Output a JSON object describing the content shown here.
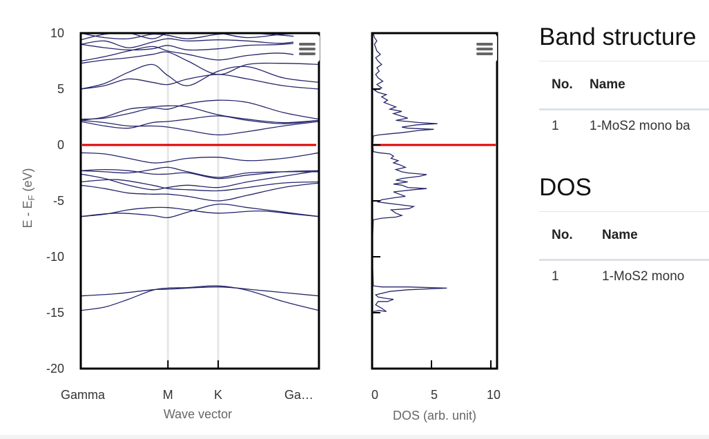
{
  "chart_data": [
    {
      "type": "line",
      "name": "Band structure plot",
      "xlabel": "Wave vector",
      "ylabel_main": "E - E",
      "ylabel_sub": "F",
      "ylabel_tail": " (eV)",
      "ylim": [
        -20,
        10
      ],
      "yticks": [
        10,
        5,
        0,
        -5,
        -10,
        -15,
        -20
      ],
      "xlim": [
        0,
        1
      ],
      "kpoints": [
        {
          "label": "Gamma",
          "x": 0.0
        },
        {
          "label": "M",
          "x": 0.366
        },
        {
          "label": "K",
          "x": 0.577
        },
        {
          "label": "Ga…",
          "x": 1.0
        }
      ],
      "fermi_level": 0,
      "bands": [
        [
          [
            0,
            -14.8
          ],
          [
            0.1,
            -14.5
          ],
          [
            0.2,
            -13.8
          ],
          [
            0.3,
            -13.0
          ],
          [
            0.366,
            -12.8
          ],
          [
            0.45,
            -12.75
          ],
          [
            0.577,
            -12.6
          ],
          [
            0.7,
            -13.0
          ],
          [
            0.85,
            -14.0
          ],
          [
            1,
            -14.8
          ]
        ],
        [
          [
            0,
            -13.5
          ],
          [
            0.15,
            -13.3
          ],
          [
            0.3,
            -12.95
          ],
          [
            0.366,
            -12.9
          ],
          [
            0.577,
            -12.7
          ],
          [
            0.75,
            -13.0
          ],
          [
            1,
            -13.5
          ]
        ],
        [
          [
            0,
            -6.4
          ],
          [
            0.1,
            -6.2
          ],
          [
            0.2,
            -5.8
          ],
          [
            0.3,
            -5.6
          ],
          [
            0.366,
            -5.6
          ],
          [
            0.45,
            -5.8
          ],
          [
            0.577,
            -6.1
          ],
          [
            0.75,
            -5.9
          ],
          [
            0.9,
            -6.2
          ],
          [
            1,
            -6.4
          ]
        ],
        [
          [
            0,
            -6.4
          ],
          [
            0.15,
            -6.1
          ],
          [
            0.3,
            -6.3
          ],
          [
            0.366,
            -6.5
          ],
          [
            0.45,
            -6.0
          ],
          [
            0.577,
            -5.3
          ],
          [
            0.7,
            -5.6
          ],
          [
            0.85,
            -6.0
          ],
          [
            1,
            -6.4
          ]
        ],
        [
          [
            0,
            -3.6
          ],
          [
            0.1,
            -3.9
          ],
          [
            0.2,
            -4.3
          ],
          [
            0.3,
            -4.4
          ],
          [
            0.366,
            -4.4
          ],
          [
            0.45,
            -4.6
          ],
          [
            0.577,
            -5.0
          ],
          [
            0.7,
            -4.5
          ],
          [
            0.85,
            -3.8
          ],
          [
            1,
            -3.4
          ]
        ],
        [
          [
            0,
            -3.3
          ],
          [
            0.15,
            -3.1
          ],
          [
            0.3,
            -3.6
          ],
          [
            0.366,
            -3.9
          ],
          [
            0.45,
            -4.0
          ],
          [
            0.577,
            -4.1
          ],
          [
            0.7,
            -3.8
          ],
          [
            0.85,
            -3.4
          ],
          [
            1,
            -3.3
          ]
        ],
        [
          [
            0,
            -2.6
          ],
          [
            0.1,
            -3.0
          ],
          [
            0.2,
            -3.6
          ],
          [
            0.3,
            -4.0
          ],
          [
            0.366,
            -3.8
          ],
          [
            0.45,
            -3.6
          ],
          [
            0.577,
            -3.8
          ],
          [
            0.7,
            -3.3
          ],
          [
            0.85,
            -2.8
          ],
          [
            1,
            -2.3
          ]
        ],
        [
          [
            0,
            -2.3
          ],
          [
            0.1,
            -2.2
          ],
          [
            0.2,
            -2.3
          ],
          [
            0.3,
            -2.6
          ],
          [
            0.366,
            -2.6
          ],
          [
            0.45,
            -2.5
          ],
          [
            0.577,
            -3.0
          ],
          [
            0.7,
            -2.7
          ],
          [
            0.85,
            -2.4
          ],
          [
            1,
            -2.3
          ]
        ],
        [
          [
            0,
            -2.3
          ],
          [
            0.1,
            -2.4
          ],
          [
            0.2,
            -2.5
          ],
          [
            0.3,
            -2.2
          ],
          [
            0.366,
            -2.0
          ],
          [
            0.45,
            -2.4
          ],
          [
            0.577,
            -2.9
          ],
          [
            0.7,
            -2.5
          ],
          [
            0.85,
            -2.4
          ],
          [
            1,
            -2.4
          ]
        ],
        [
          [
            0,
            -0.7
          ],
          [
            0.1,
            -0.8
          ],
          [
            0.2,
            -1.2
          ],
          [
            0.3,
            -1.6
          ],
          [
            0.366,
            -1.5
          ],
          [
            0.45,
            -1.2
          ],
          [
            0.577,
            -1.1
          ],
          [
            0.7,
            -1.4
          ],
          [
            0.85,
            -1.2
          ],
          [
            1,
            -0.7
          ]
        ],
        [
          [
            0,
            2.2
          ],
          [
            0.1,
            2.0
          ],
          [
            0.2,
            1.7
          ],
          [
            0.3,
            1.7
          ],
          [
            0.366,
            1.6
          ],
          [
            0.45,
            1.3
          ],
          [
            0.577,
            0.9
          ],
          [
            0.7,
            1.2
          ],
          [
            0.85,
            1.7
          ],
          [
            1,
            2.1
          ]
        ],
        [
          [
            0,
            2.1
          ],
          [
            0.1,
            1.7
          ],
          [
            0.2,
            1.5
          ],
          [
            0.3,
            2.0
          ],
          [
            0.366,
            2.1
          ],
          [
            0.45,
            2.3
          ],
          [
            0.577,
            2.6
          ],
          [
            0.7,
            2.2
          ],
          [
            0.85,
            1.9
          ],
          [
            1,
            2.2
          ]
        ],
        [
          [
            0,
            2.2
          ],
          [
            0.1,
            2.5
          ],
          [
            0.2,
            3.2
          ],
          [
            0.3,
            3.4
          ],
          [
            0.366,
            3.5
          ],
          [
            0.45,
            3.4
          ],
          [
            0.577,
            2.7
          ],
          [
            0.7,
            2.3
          ],
          [
            0.85,
            2.0
          ],
          [
            1,
            2.2
          ]
        ],
        [
          [
            0,
            2.3
          ],
          [
            0.1,
            2.4
          ],
          [
            0.2,
            2.8
          ],
          [
            0.3,
            3.3
          ],
          [
            0.366,
            3.2
          ],
          [
            0.45,
            3.7
          ],
          [
            0.577,
            4.0
          ],
          [
            0.7,
            3.8
          ],
          [
            0.85,
            2.9
          ],
          [
            1,
            2.3
          ]
        ],
        [
          [
            0,
            5.0
          ],
          [
            0.1,
            5.3
          ],
          [
            0.2,
            5.9
          ],
          [
            0.3,
            5.6
          ],
          [
            0.366,
            5.4
          ],
          [
            0.45,
            5.9
          ],
          [
            0.577,
            6.3
          ],
          [
            0.7,
            5.9
          ],
          [
            0.85,
            5.3
          ],
          [
            1,
            5.0
          ]
        ],
        [
          [
            0,
            5.0
          ],
          [
            0.1,
            5.5
          ],
          [
            0.2,
            6.5
          ],
          [
            0.3,
            7.2
          ],
          [
            0.366,
            6.2
          ],
          [
            0.45,
            5.3
          ],
          [
            0.577,
            6.6
          ],
          [
            0.7,
            7.0
          ],
          [
            0.85,
            6.0
          ],
          [
            1,
            5.6
          ]
        ],
        [
          [
            0,
            7.3
          ],
          [
            0.1,
            7.6
          ],
          [
            0.2,
            7.8
          ],
          [
            0.3,
            8.1
          ],
          [
            0.366,
            8.3
          ],
          [
            0.45,
            7.5
          ],
          [
            0.577,
            6.3
          ],
          [
            0.7,
            7.2
          ],
          [
            0.85,
            7.3
          ],
          [
            1,
            7.2
          ]
        ],
        [
          [
            0,
            7.5
          ],
          [
            0.1,
            7.9
          ],
          [
            0.2,
            8.4
          ],
          [
            0.3,
            8.8
          ],
          [
            0.366,
            8.4
          ],
          [
            0.45,
            8.1
          ],
          [
            0.577,
            7.6
          ],
          [
            0.7,
            8.0
          ],
          [
            0.85,
            8.2
          ],
          [
            1,
            7.6
          ]
        ],
        [
          [
            0,
            9.0
          ],
          [
            0.1,
            8.7
          ],
          [
            0.2,
            8.5
          ],
          [
            0.3,
            8.6
          ],
          [
            0.366,
            8.9
          ],
          [
            0.45,
            8.5
          ],
          [
            0.577,
            8.6
          ],
          [
            0.7,
            8.9
          ],
          [
            0.85,
            9.0
          ],
          [
            1,
            9.3
          ]
        ],
        [
          [
            0,
            9.0
          ],
          [
            0.1,
            9.3
          ],
          [
            0.2,
            8.7
          ],
          [
            0.3,
            9.2
          ],
          [
            0.366,
            9.5
          ],
          [
            0.45,
            9.3
          ],
          [
            0.577,
            9.4
          ],
          [
            0.7,
            9.3
          ],
          [
            0.85,
            9.1
          ],
          [
            1,
            9.6
          ]
        ],
        [
          [
            0,
            10.0
          ],
          [
            0.1,
            9.6
          ],
          [
            0.2,
            9.5
          ],
          [
            0.3,
            9.9
          ],
          [
            0.366,
            9.8
          ],
          [
            0.45,
            9.5
          ],
          [
            0.577,
            9.9
          ],
          [
            0.7,
            10.0
          ],
          [
            0.85,
            9.8
          ],
          [
            1,
            9.5
          ]
        ],
        [
          [
            0,
            9.4
          ],
          [
            0.1,
            9.9
          ],
          [
            0.2,
            10.0
          ],
          [
            0.3,
            9.5
          ],
          [
            0.366,
            10.0
          ],
          [
            0.45,
            10.0
          ],
          [
            0.577,
            10.0
          ],
          [
            0.7,
            9.6
          ],
          [
            0.85,
            9.9
          ],
          [
            1,
            10.0
          ]
        ]
      ]
    },
    {
      "type": "line",
      "name": "DOS plot",
      "xlabel": "DOS (arb. unit)",
      "xlim": [
        0,
        10
      ],
      "xticks": [
        0,
        5,
        10
      ],
      "ylim": [
        -20,
        10
      ],
      "fermi_level": 0,
      "dos": [
        [
          0.1,
          -14.9
        ],
        [
          0.6,
          -14.8
        ],
        [
          1.2,
          -14.9
        ],
        [
          0.8,
          -14.6
        ],
        [
          0.3,
          -14.3
        ],
        [
          0.5,
          -14.0
        ],
        [
          1.3,
          -14.0
        ],
        [
          1.8,
          -13.8
        ],
        [
          1.0,
          -13.7
        ],
        [
          0.5,
          -13.6
        ],
        [
          0.3,
          -13.4
        ],
        [
          1.5,
          -13.1
        ],
        [
          3.0,
          -12.95
        ],
        [
          6.3,
          -12.8
        ],
        [
          3.0,
          -12.7
        ],
        [
          0.8,
          -12.7
        ],
        [
          0.1,
          -12.6
        ],
        [
          0.05,
          -11.0
        ],
        [
          0.05,
          -8.0
        ],
        [
          0.1,
          -6.7
        ],
        [
          0.8,
          -6.55
        ],
        [
          2.0,
          -6.45
        ],
        [
          2.5,
          -6.3
        ],
        [
          2.0,
          -6.1
        ],
        [
          1.6,
          -5.8
        ],
        [
          3.1,
          -5.7
        ],
        [
          3.5,
          -5.5
        ],
        [
          2.0,
          -5.3
        ],
        [
          1.2,
          -5.2
        ],
        [
          0.5,
          -5.1
        ],
        [
          0.8,
          -4.9
        ],
        [
          2.0,
          -4.7
        ],
        [
          2.8,
          -4.6
        ],
        [
          2.3,
          -4.4
        ],
        [
          1.8,
          -4.2
        ],
        [
          3.5,
          -4.0
        ],
        [
          4.6,
          -3.9
        ],
        [
          3.0,
          -3.8
        ],
        [
          2.5,
          -3.6
        ],
        [
          1.8,
          -3.5
        ],
        [
          3.0,
          -3.3
        ],
        [
          2.0,
          -3.15
        ],
        [
          2.5,
          -3.0
        ],
        [
          4.0,
          -2.8
        ],
        [
          4.6,
          -2.65
        ],
        [
          3.0,
          -2.5
        ],
        [
          2.5,
          -2.4
        ],
        [
          2.0,
          -2.2
        ],
        [
          2.8,
          -2.0
        ],
        [
          2.4,
          -1.8
        ],
        [
          1.8,
          -1.6
        ],
        [
          2.2,
          -1.4
        ],
        [
          1.6,
          -1.2
        ],
        [
          1.8,
          -1.0
        ],
        [
          1.5,
          -0.8
        ],
        [
          0.6,
          -0.7
        ],
        [
          0.1,
          -0.6
        ],
        [
          0.05,
          0.0
        ],
        [
          0.1,
          0.8
        ],
        [
          0.6,
          0.9
        ],
        [
          1.5,
          1.0
        ],
        [
          2.5,
          1.1
        ],
        [
          4.0,
          1.3
        ],
        [
          5.2,
          1.4
        ],
        [
          3.0,
          1.5
        ],
        [
          2.5,
          1.6
        ],
        [
          3.8,
          1.8
        ],
        [
          5.5,
          1.9
        ],
        [
          4.0,
          2.0
        ],
        [
          3.0,
          2.1
        ],
        [
          2.0,
          2.2
        ],
        [
          3.0,
          2.4
        ],
        [
          2.4,
          2.6
        ],
        [
          1.8,
          2.8
        ],
        [
          2.5,
          3.0
        ],
        [
          1.5,
          3.2
        ],
        [
          2.0,
          3.4
        ],
        [
          1.5,
          3.6
        ],
        [
          1.0,
          3.8
        ],
        [
          1.3,
          4.0
        ],
        [
          0.8,
          4.3
        ],
        [
          1.2,
          4.5
        ],
        [
          0.5,
          4.7
        ],
        [
          0.2,
          4.9
        ],
        [
          0.8,
          5.1
        ],
        [
          0.4,
          5.4
        ],
        [
          0.9,
          5.7
        ],
        [
          0.5,
          6.0
        ],
        [
          0.3,
          6.3
        ],
        [
          0.6,
          6.6
        ],
        [
          0.4,
          6.9
        ],
        [
          0.8,
          7.2
        ],
        [
          0.5,
          7.5
        ],
        [
          0.3,
          7.8
        ],
        [
          0.7,
          8.1
        ],
        [
          0.4,
          8.4
        ],
        [
          0.3,
          8.7
        ],
        [
          0.2,
          9.0
        ],
        [
          0.4,
          9.3
        ],
        [
          0.2,
          9.6
        ],
        [
          0.1,
          10.0
        ]
      ]
    }
  ],
  "band_structure": {
    "title": "Band structure",
    "headers": [
      "No.",
      "Name"
    ],
    "rows": [
      [
        "1",
        "1-MoS2 mono ba"
      ]
    ]
  },
  "dos_table": {
    "title": "DOS",
    "headers": [
      "No.",
      "Name"
    ],
    "rows": [
      [
        "1",
        "1-MoS2 mono"
      ]
    ]
  },
  "menu_icon": "hamburger-menu-icon"
}
